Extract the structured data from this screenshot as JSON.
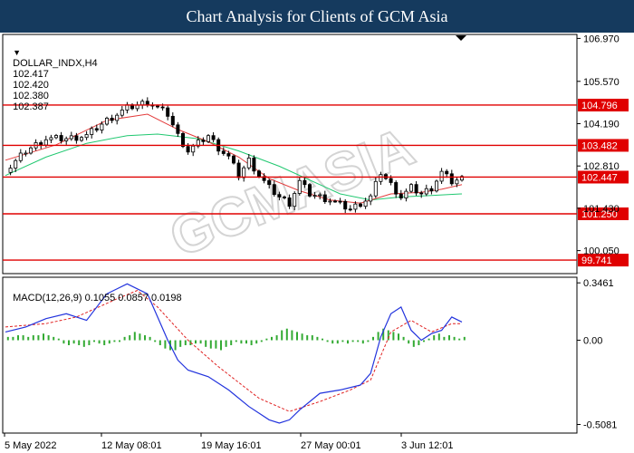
{
  "header": {
    "title": "Chart Analysis for Clients of GCM Asia"
  },
  "chart_data": [
    {
      "type": "candlestick",
      "symbol": "DOLLAR_INDX,H4",
      "ohlc": [
        "102.417",
        "102.420",
        "102.380",
        "102.387"
      ],
      "ylim": [
        99.3,
        107.1
      ],
      "y_ticks": [
        "106.970",
        "105.570",
        "104.190",
        "102.810",
        "101.430",
        "100.050"
      ],
      "levels": [
        {
          "label": "104.796",
          "value": 104.796
        },
        {
          "label": "103.482",
          "value": 103.482
        },
        {
          "label": "102.447",
          "value": 102.447
        },
        {
          "label": "101.250",
          "value": 101.25
        },
        {
          "label": "99.741",
          "value": 99.741
        }
      ],
      "close_path": [
        [
          0,
          102.6
        ],
        [
          4,
          103.3
        ],
        [
          8,
          103.7
        ],
        [
          12,
          103.7
        ],
        [
          16,
          103.8
        ],
        [
          20,
          104.3
        ],
        [
          24,
          104.7
        ],
        [
          28,
          104.9
        ],
        [
          32,
          104.5
        ],
        [
          34,
          103.8
        ],
        [
          36,
          103.3
        ],
        [
          40,
          103.8
        ],
        [
          42,
          103.4
        ],
        [
          44,
          103.1
        ],
        [
          46,
          102.5
        ],
        [
          48,
          103.0
        ],
        [
          50,
          102.5
        ],
        [
          52,
          102.1
        ],
        [
          54,
          101.8
        ],
        [
          56,
          101.6
        ],
        [
          58,
          102.3
        ],
        [
          60,
          101.9
        ],
        [
          64,
          101.7
        ],
        [
          68,
          101.4
        ],
        [
          72,
          101.8
        ],
        [
          74,
          102.6
        ],
        [
          76,
          102.2
        ],
        [
          78,
          101.8
        ],
        [
          80,
          102.1
        ],
        [
          82,
          101.9
        ],
        [
          84,
          102.1
        ],
        [
          86,
          102.6
        ],
        [
          88,
          102.3
        ],
        [
          90,
          102.4
        ]
      ],
      "sma_fast_path": [
        [
          0,
          103.0
        ],
        [
          10,
          103.5
        ],
        [
          20,
          104.3
        ],
        [
          28,
          104.5
        ],
        [
          34,
          104.0
        ],
        [
          40,
          103.6
        ],
        [
          46,
          103.1
        ],
        [
          52,
          102.4
        ],
        [
          58,
          102.0
        ],
        [
          64,
          101.7
        ],
        [
          70,
          101.6
        ],
        [
          76,
          101.9
        ],
        [
          82,
          101.95
        ],
        [
          86,
          102.05
        ],
        [
          90,
          102.2
        ]
      ],
      "sma_slow_path": [
        [
          0,
          102.5
        ],
        [
          8,
          103.1
        ],
        [
          16,
          103.55
        ],
        [
          24,
          103.8
        ],
        [
          30,
          103.85
        ],
        [
          38,
          103.7
        ],
        [
          46,
          103.3
        ],
        [
          54,
          102.8
        ],
        [
          62,
          102.2
        ],
        [
          66,
          101.9
        ],
        [
          72,
          101.7
        ],
        [
          78,
          101.8
        ],
        [
          84,
          101.85
        ],
        [
          90,
          101.9
        ]
      ],
      "colors": {
        "level": "#e00000",
        "sma_fast": "#e33b3b",
        "sma_slow": "#20c870",
        "candle": "#000000"
      }
    },
    {
      "type": "macd",
      "label": "MACD(12,26,9) 0.1055 0.0857 0.0198",
      "ylim": [
        -0.56,
        0.38
      ],
      "y_ticks": [
        "0.3461",
        "0.00",
        "-0.5081"
      ],
      "macd_path": [
        [
          0,
          0.05
        ],
        [
          4,
          0.08
        ],
        [
          8,
          0.13
        ],
        [
          12,
          0.16
        ],
        [
          16,
          0.12
        ],
        [
          20,
          0.28
        ],
        [
          24,
          0.34
        ],
        [
          28,
          0.28
        ],
        [
          30,
          0.14
        ],
        [
          32,
          0.0
        ],
        [
          34,
          -0.12
        ],
        [
          36,
          -0.18
        ],
        [
          40,
          -0.22
        ],
        [
          44,
          -0.3
        ],
        [
          48,
          -0.4
        ],
        [
          52,
          -0.48
        ],
        [
          54,
          -0.5
        ],
        [
          56,
          -0.48
        ],
        [
          58,
          -0.42
        ],
        [
          62,
          -0.32
        ],
        [
          66,
          -0.3
        ],
        [
          70,
          -0.27
        ],
        [
          72,
          -0.2
        ],
        [
          74,
          0.02
        ],
        [
          76,
          0.16
        ],
        [
          78,
          0.2
        ],
        [
          80,
          0.06
        ],
        [
          82,
          0.0
        ],
        [
          84,
          0.04
        ],
        [
          86,
          0.06
        ],
        [
          88,
          0.14
        ],
        [
          90,
          0.11
        ]
      ],
      "signal_path": [
        [
          0,
          0.08
        ],
        [
          8,
          0.1
        ],
        [
          14,
          0.14
        ],
        [
          22,
          0.25
        ],
        [
          26,
          0.3
        ],
        [
          30,
          0.2
        ],
        [
          36,
          0.0
        ],
        [
          42,
          -0.16
        ],
        [
          50,
          -0.35
        ],
        [
          56,
          -0.43
        ],
        [
          62,
          -0.37
        ],
        [
          68,
          -0.3
        ],
        [
          72,
          -0.24
        ],
        [
          76,
          0.05
        ],
        [
          80,
          0.12
        ],
        [
          84,
          0.05
        ],
        [
          88,
          0.1
        ],
        [
          90,
          0.1
        ]
      ],
      "histogram": [
        0.02,
        0.02,
        0.03,
        0.03,
        0.02,
        0.03,
        0.03,
        0.04,
        0.03,
        0.02,
        0.01,
        -0.02,
        -0.03,
        -0.02,
        -0.03,
        -0.04,
        -0.03,
        -0.01,
        -0.02,
        -0.03,
        -0.02,
        -0.01,
        -0.01,
        0.02,
        0.03,
        0.05,
        0.04,
        0.03,
        0.02,
        -0.01,
        -0.03,
        -0.05,
        -0.06,
        -0.06,
        -0.04,
        -0.03,
        -0.03,
        -0.02,
        -0.02,
        -0.04,
        -0.05,
        -0.05,
        -0.06,
        -0.04,
        -0.03,
        -0.01,
        -0.02,
        -0.02,
        -0.03,
        -0.02,
        -0.01,
        0.01,
        0.02,
        0.03,
        0.06,
        0.07,
        0.06,
        0.05,
        0.04,
        0.03,
        0.03,
        0.02,
        0.01,
        -0.01,
        -0.02,
        -0.02,
        -0.01,
        -0.02,
        -0.01,
        -0.01,
        -0.02,
        -0.01,
        0.02,
        0.05,
        0.07,
        0.06,
        0.05,
        0.04,
        0.02,
        -0.02,
        -0.04,
        -0.03,
        -0.01,
        0.01,
        0.03,
        0.04,
        0.02,
        0.03,
        0.02,
        0.01,
        0.02
      ],
      "colors": {
        "macd": "#2233dd",
        "signal": "#e02020",
        "histogram": "#33aa33"
      }
    }
  ],
  "x_axis": {
    "ticks": [
      "5 May 2022",
      "12 May 08:01",
      "19 May 16:01",
      "27 May 00:01",
      "3 Jun 12:01"
    ]
  },
  "watermark": "GCMASIA"
}
